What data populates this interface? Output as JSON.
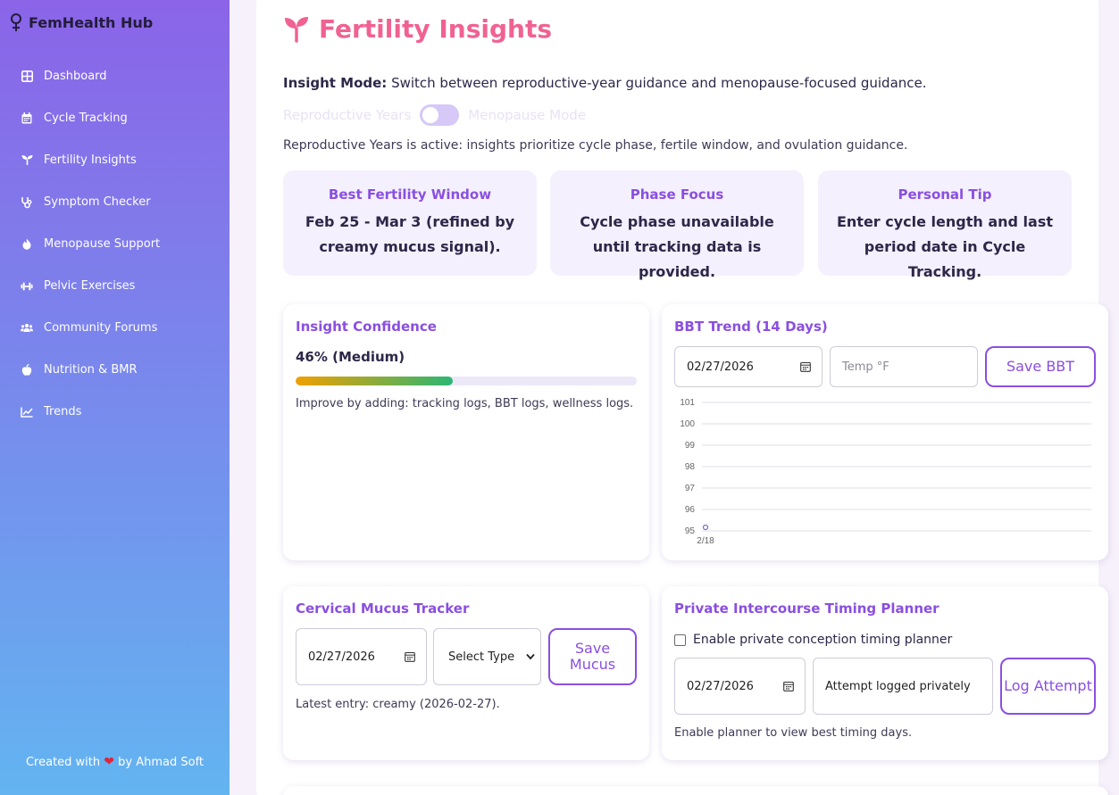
{
  "app": {
    "title": "FemHealth Hub"
  },
  "sidebar": {
    "items": [
      {
        "label": "Dashboard",
        "icon": "grid-icon"
      },
      {
        "label": "Cycle Tracking",
        "icon": "calendar-icon"
      },
      {
        "label": "Fertility Insights",
        "icon": "seedling-icon"
      },
      {
        "label": "Symptom Checker",
        "icon": "stethoscope-icon"
      },
      {
        "label": "Menopause Support",
        "icon": "fire-icon"
      },
      {
        "label": "Pelvic Exercises",
        "icon": "dumbbell-icon"
      },
      {
        "label": "Community Forums",
        "icon": "users-icon"
      },
      {
        "label": "Nutrition & BMR",
        "icon": "apple-icon"
      },
      {
        "label": "Trends",
        "icon": "line-chart-icon"
      }
    ],
    "footer": {
      "prefix": "Created with",
      "suffix": "by Ahmad Soft"
    }
  },
  "page": {
    "title": "Fertility Insights",
    "mode_label": "Insight Mode:",
    "mode_desc": "Switch between reproductive-year guidance and menopause-focused guidance.",
    "toggle_left": "Reproductive Years",
    "toggle_right": "Menopause Mode",
    "active_desc": "Reproductive Years is active: insights prioritize cycle phase, fertile window, and ovulation guidance."
  },
  "insights": [
    {
      "heading": "Best Fertility Window",
      "text": "Feb 25 - Mar 3 (refined by creamy mucus signal)."
    },
    {
      "heading": "Phase Focus",
      "text": "Cycle phase unavailable until tracking data is provided."
    },
    {
      "heading": "Personal Tip",
      "text": "Enter cycle length and last period date in Cycle Tracking."
    }
  ],
  "confidence": {
    "title": "Insight Confidence",
    "value_text": "46% (Medium)",
    "percent": 46,
    "hint": "Improve by adding: tracking logs, BBT logs, wellness logs."
  },
  "bbt": {
    "title": "BBT Trend (14 Days)",
    "date_value": "02/27/2026",
    "temp_placeholder": "Temp °F",
    "save_label": "Save BBT"
  },
  "chart_data": {
    "type": "line",
    "title": "",
    "xlabel": "",
    "ylabel": "",
    "ylim": [
      95,
      101
    ],
    "yticks": [
      95,
      96,
      97,
      98,
      99,
      100,
      101
    ],
    "x": [
      "2/18"
    ],
    "series": [
      {
        "values": [
          95
        ]
      }
    ],
    "grid": true,
    "colors": {
      "grid": "#e1dde8",
      "point": "#7a6cc8"
    }
  },
  "mucus": {
    "title": "Cervical Mucus Tracker",
    "date_value": "02/27/2026",
    "select_value": "Select Type",
    "save_label": "Save Mucus",
    "latest": "Latest entry: creamy (2026-02-27)."
  },
  "planner": {
    "title": "Private Intercourse Timing Planner",
    "checkbox_label": "Enable private conception timing planner",
    "date_value": "02/27/2026",
    "note_value": "Attempt logged privately",
    "log_label": "Log Attempt",
    "hint": "Enable planner to view best timing days."
  }
}
